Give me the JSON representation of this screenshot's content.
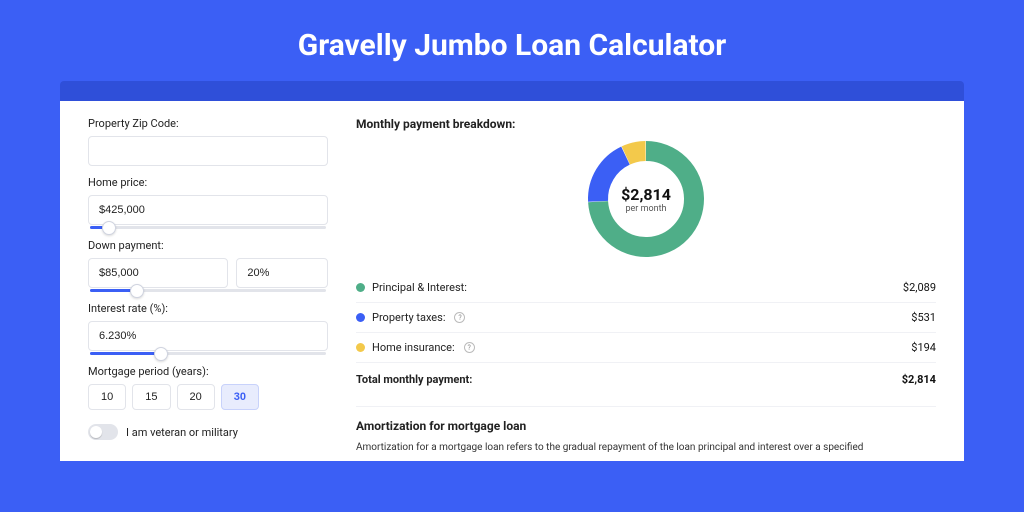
{
  "page": {
    "title": "Gravelly Jumbo Loan Calculator",
    "background_color": "#3b5ff5",
    "header_bar_color": "#2f4fd9",
    "card_color": "#ffffff"
  },
  "form": {
    "zip_label": "Property Zip Code:",
    "zip_value": "",
    "home_price_label": "Home price:",
    "home_price_value": "$425,000",
    "home_price_slider_pct": 8,
    "down_label": "Down payment:",
    "down_value": "$85,000",
    "down_pct_value": "20%",
    "down_slider_pct": 20,
    "rate_label": "Interest rate (%):",
    "rate_value": "6.230%",
    "rate_slider_pct": 30,
    "period_label": "Mortgage period (years):",
    "periods": [
      "10",
      "15",
      "20",
      "30"
    ],
    "period_selected": "30",
    "veteran_label": "I am veteran or military",
    "veteran_on": false
  },
  "breakdown": {
    "title": "Monthly payment breakdown:",
    "donut": {
      "amount": "$2,814",
      "sub": "per month",
      "slices": [
        {
          "label": "Principal & Interest",
          "value": 2089,
          "color": "#4fae88",
          "display": "$2,089"
        },
        {
          "label": "Property taxes",
          "value": 531,
          "color": "#3b5ff5",
          "display": "$531",
          "info": true
        },
        {
          "label": "Home insurance",
          "value": 194,
          "color": "#f3c94b",
          "display": "$194",
          "info": true
        }
      ],
      "stroke_width": 20,
      "background": "#ffffff"
    },
    "total_label": "Total monthly payment:",
    "total_value": "$2,814"
  },
  "amort": {
    "title": "Amortization for mortgage loan",
    "text": "Amortization for a mortgage loan refers to the gradual repayment of the loan principal and interest over a specified"
  }
}
